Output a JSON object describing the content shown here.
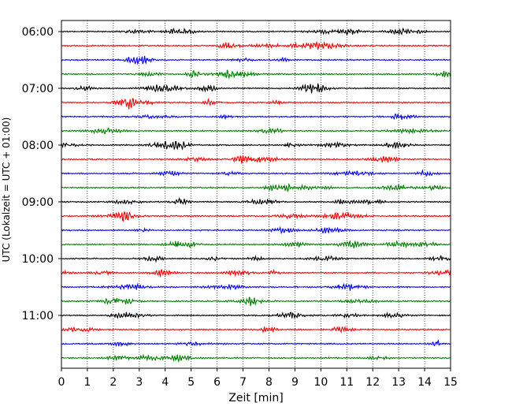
{
  "chart_data": {
    "type": "line",
    "title": "",
    "xlabel": "Zeit  [min]",
    "ylabel": "UTC (Lokalzeit = UTC + 01:00)",
    "xlim": [
      0,
      15
    ],
    "x_ticks": [
      "0",
      "1",
      "2",
      "3",
      "4",
      "5",
      "6",
      "7",
      "8",
      "9",
      "10",
      "11",
      "12",
      "13",
      "14",
      "15"
    ],
    "y_tick_labels": [
      "06:00",
      "07:00",
      "08:00",
      "09:00",
      "10:00",
      "11:00"
    ],
    "grid": "vertical dotted lines at each minute",
    "legend": "none",
    "trace_interval_minutes": 15,
    "trace_colors": [
      "#000000",
      "#ff0000",
      "#0000ff",
      "#008000"
    ],
    "series": [
      {
        "start": "06:00",
        "color": "#000000"
      },
      {
        "start": "06:15",
        "color": "#ff0000"
      },
      {
        "start": "06:30",
        "color": "#0000ff"
      },
      {
        "start": "06:45",
        "color": "#008000"
      },
      {
        "start": "07:00",
        "color": "#000000"
      },
      {
        "start": "07:15",
        "color": "#ff0000"
      },
      {
        "start": "07:30",
        "color": "#0000ff"
      },
      {
        "start": "07:45",
        "color": "#008000"
      },
      {
        "start": "08:00",
        "color": "#000000"
      },
      {
        "start": "08:15",
        "color": "#ff0000"
      },
      {
        "start": "08:30",
        "color": "#0000ff"
      },
      {
        "start": "08:45",
        "color": "#008000"
      },
      {
        "start": "09:00",
        "color": "#000000"
      },
      {
        "start": "09:15",
        "color": "#ff0000"
      },
      {
        "start": "09:30",
        "color": "#0000ff"
      },
      {
        "start": "09:45",
        "color": "#008000"
      },
      {
        "start": "10:00",
        "color": "#000000"
      },
      {
        "start": "10:15",
        "color": "#ff0000"
      },
      {
        "start": "10:30",
        "color": "#0000ff"
      },
      {
        "start": "10:45",
        "color": "#008000"
      },
      {
        "start": "11:00",
        "color": "#000000"
      },
      {
        "start": "11:15",
        "color": "#ff0000"
      },
      {
        "start": "11:30",
        "color": "#0000ff"
      },
      {
        "start": "11:45",
        "color": "#008000"
      }
    ]
  }
}
